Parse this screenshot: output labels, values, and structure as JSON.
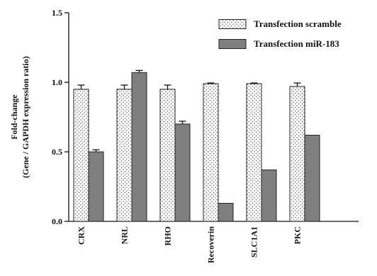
{
  "chart_data": {
    "type": "bar",
    "title": "",
    "xlabel": "",
    "ylabel": [
      "Fold-change",
      "(Gene / GAPDH expression ratio)"
    ],
    "ylim": [
      0,
      1.5
    ],
    "yticks": [
      0.0,
      0.5,
      1.0,
      1.5
    ],
    "ytick_labels": [
      "0.0",
      "0.5",
      "1.0",
      "1.5"
    ],
    "categories": [
      "CRX",
      "NRL",
      "RHO",
      "Recoverin",
      "SLC1A1",
      "PKC"
    ],
    "series": [
      {
        "name": "Transfection scramble",
        "values": [
          0.95,
          0.95,
          0.95,
          0.99,
          0.99,
          0.97
        ],
        "errors": [
          0.03,
          0.03,
          0.03,
          0.005,
          0.005,
          0.025
        ],
        "pattern": "dotted",
        "color": "#ffffff"
      },
      {
        "name": "Transfection miR-183",
        "values": [
          0.5,
          1.07,
          0.7,
          0.13,
          0.37,
          0.62
        ],
        "errors": [
          0.015,
          0.015,
          0.02,
          0.0,
          0.0,
          0.0
        ],
        "pattern": "solid",
        "color": "#7f7f7f"
      }
    ],
    "legend": "top-right",
    "grid": false,
    "error_bars": true
  }
}
